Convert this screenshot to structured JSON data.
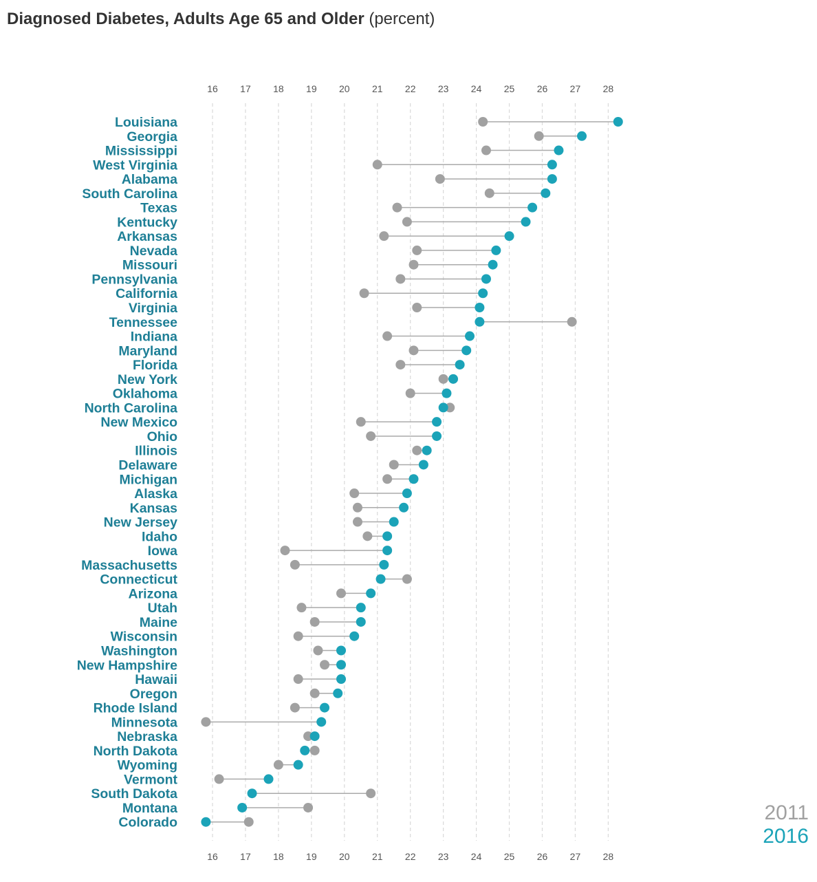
{
  "title": "Diagnosed Diabetes, Adults Age 65 and Older",
  "title_unit": "(percent)",
  "colors": {
    "series_2011": "#a1a1a1",
    "series_2016": "#1ba3b8",
    "label": "#1e7f96",
    "connector": "#aaaaaa",
    "grid": "#d9d9d9"
  },
  "legend": {
    "label_2011": "2011",
    "label_2016": "2016"
  },
  "chart_data": {
    "type": "scatter",
    "subtype": "dumbbell",
    "title": "Diagnosed Diabetes, Adults Age 65 and Older (percent)",
    "xlim": [
      16,
      28
    ],
    "x_ticks": [
      "16",
      "17",
      "18",
      "19",
      "20",
      "21",
      "22",
      "23",
      "24",
      "25",
      "26",
      "27",
      "28"
    ],
    "grid": "vertical dashed",
    "legend_position": "bottom-right",
    "series": [
      {
        "name": "2011",
        "color": "#a1a1a1"
      },
      {
        "name": "2016",
        "color": "#1ba3b8"
      }
    ],
    "rows": [
      {
        "state": "Louisiana",
        "v2011": 24.2,
        "v2016": 28.3
      },
      {
        "state": "Georgia",
        "v2011": 25.9,
        "v2016": 27.2
      },
      {
        "state": "Mississippi",
        "v2011": 24.3,
        "v2016": 26.5
      },
      {
        "state": "West Virginia",
        "v2011": 21.0,
        "v2016": 26.3
      },
      {
        "state": "Alabama",
        "v2011": 22.9,
        "v2016": 26.3
      },
      {
        "state": "South Carolina",
        "v2011": 24.4,
        "v2016": 26.1
      },
      {
        "state": "Texas",
        "v2011": 21.6,
        "v2016": 25.7
      },
      {
        "state": "Kentucky",
        "v2011": 21.9,
        "v2016": 25.5
      },
      {
        "state": "Arkansas",
        "v2011": 21.2,
        "v2016": 25.0
      },
      {
        "state": "Nevada",
        "v2011": 22.2,
        "v2016": 24.6
      },
      {
        "state": "Missouri",
        "v2011": 22.1,
        "v2016": 24.5
      },
      {
        "state": "Pennsylvania",
        "v2011": 21.7,
        "v2016": 24.3
      },
      {
        "state": "California",
        "v2011": 20.6,
        "v2016": 24.2
      },
      {
        "state": "Virginia",
        "v2011": 22.2,
        "v2016": 24.1
      },
      {
        "state": "Tennessee",
        "v2011": 26.9,
        "v2016": 24.1
      },
      {
        "state": "Indiana",
        "v2011": 21.3,
        "v2016": 23.8
      },
      {
        "state": "Maryland",
        "v2011": 22.1,
        "v2016": 23.7
      },
      {
        "state": "Florida",
        "v2011": 21.7,
        "v2016": 23.5
      },
      {
        "state": "New York",
        "v2011": 23.0,
        "v2016": 23.3
      },
      {
        "state": "Oklahoma",
        "v2011": 22.0,
        "v2016": 23.1
      },
      {
        "state": "North Carolina",
        "v2011": 23.2,
        "v2016": 23.0
      },
      {
        "state": "New Mexico",
        "v2011": 20.5,
        "v2016": 22.8
      },
      {
        "state": "Ohio",
        "v2011": 20.8,
        "v2016": 22.8
      },
      {
        "state": "Illinois",
        "v2011": 22.2,
        "v2016": 22.5
      },
      {
        "state": "Delaware",
        "v2011": 21.5,
        "v2016": 22.4
      },
      {
        "state": "Michigan",
        "v2011": 21.3,
        "v2016": 22.1
      },
      {
        "state": "Alaska",
        "v2011": 20.3,
        "v2016": 21.9
      },
      {
        "state": "Kansas",
        "v2011": 20.4,
        "v2016": 21.8
      },
      {
        "state": "New Jersey",
        "v2011": 20.4,
        "v2016": 21.5
      },
      {
        "state": "Idaho",
        "v2011": 20.7,
        "v2016": 21.3
      },
      {
        "state": "Iowa",
        "v2011": 18.2,
        "v2016": 21.3
      },
      {
        "state": "Massachusetts",
        "v2011": 18.5,
        "v2016": 21.2
      },
      {
        "state": "Connecticut",
        "v2011": 21.9,
        "v2016": 21.1
      },
      {
        "state": "Arizona",
        "v2011": 19.9,
        "v2016": 20.8
      },
      {
        "state": "Utah",
        "v2011": 18.7,
        "v2016": 20.5
      },
      {
        "state": "Maine",
        "v2011": 19.1,
        "v2016": 20.5
      },
      {
        "state": "Wisconsin",
        "v2011": 18.6,
        "v2016": 20.3
      },
      {
        "state": "Washington",
        "v2011": 19.2,
        "v2016": 19.9
      },
      {
        "state": "New Hampshire",
        "v2011": 19.4,
        "v2016": 19.9
      },
      {
        "state": "Hawaii",
        "v2011": 18.6,
        "v2016": 19.9
      },
      {
        "state": "Oregon",
        "v2011": 19.1,
        "v2016": 19.8
      },
      {
        "state": "Rhode Island",
        "v2011": 18.5,
        "v2016": 19.4
      },
      {
        "state": "Minnesota",
        "v2011": 15.8,
        "v2016": 19.3
      },
      {
        "state": "Nebraska",
        "v2011": 18.9,
        "v2016": 19.1
      },
      {
        "state": "North Dakota",
        "v2011": 19.1,
        "v2016": 18.8
      },
      {
        "state": "Wyoming",
        "v2011": 18.0,
        "v2016": 18.6
      },
      {
        "state": "Vermont",
        "v2011": 16.2,
        "v2016": 17.7
      },
      {
        "state": "South Dakota",
        "v2011": 20.8,
        "v2016": 17.2
      },
      {
        "state": "Montana",
        "v2011": 18.9,
        "v2016": 16.9
      },
      {
        "state": "Colorado",
        "v2011": 17.1,
        "v2016": 15.8
      }
    ]
  }
}
